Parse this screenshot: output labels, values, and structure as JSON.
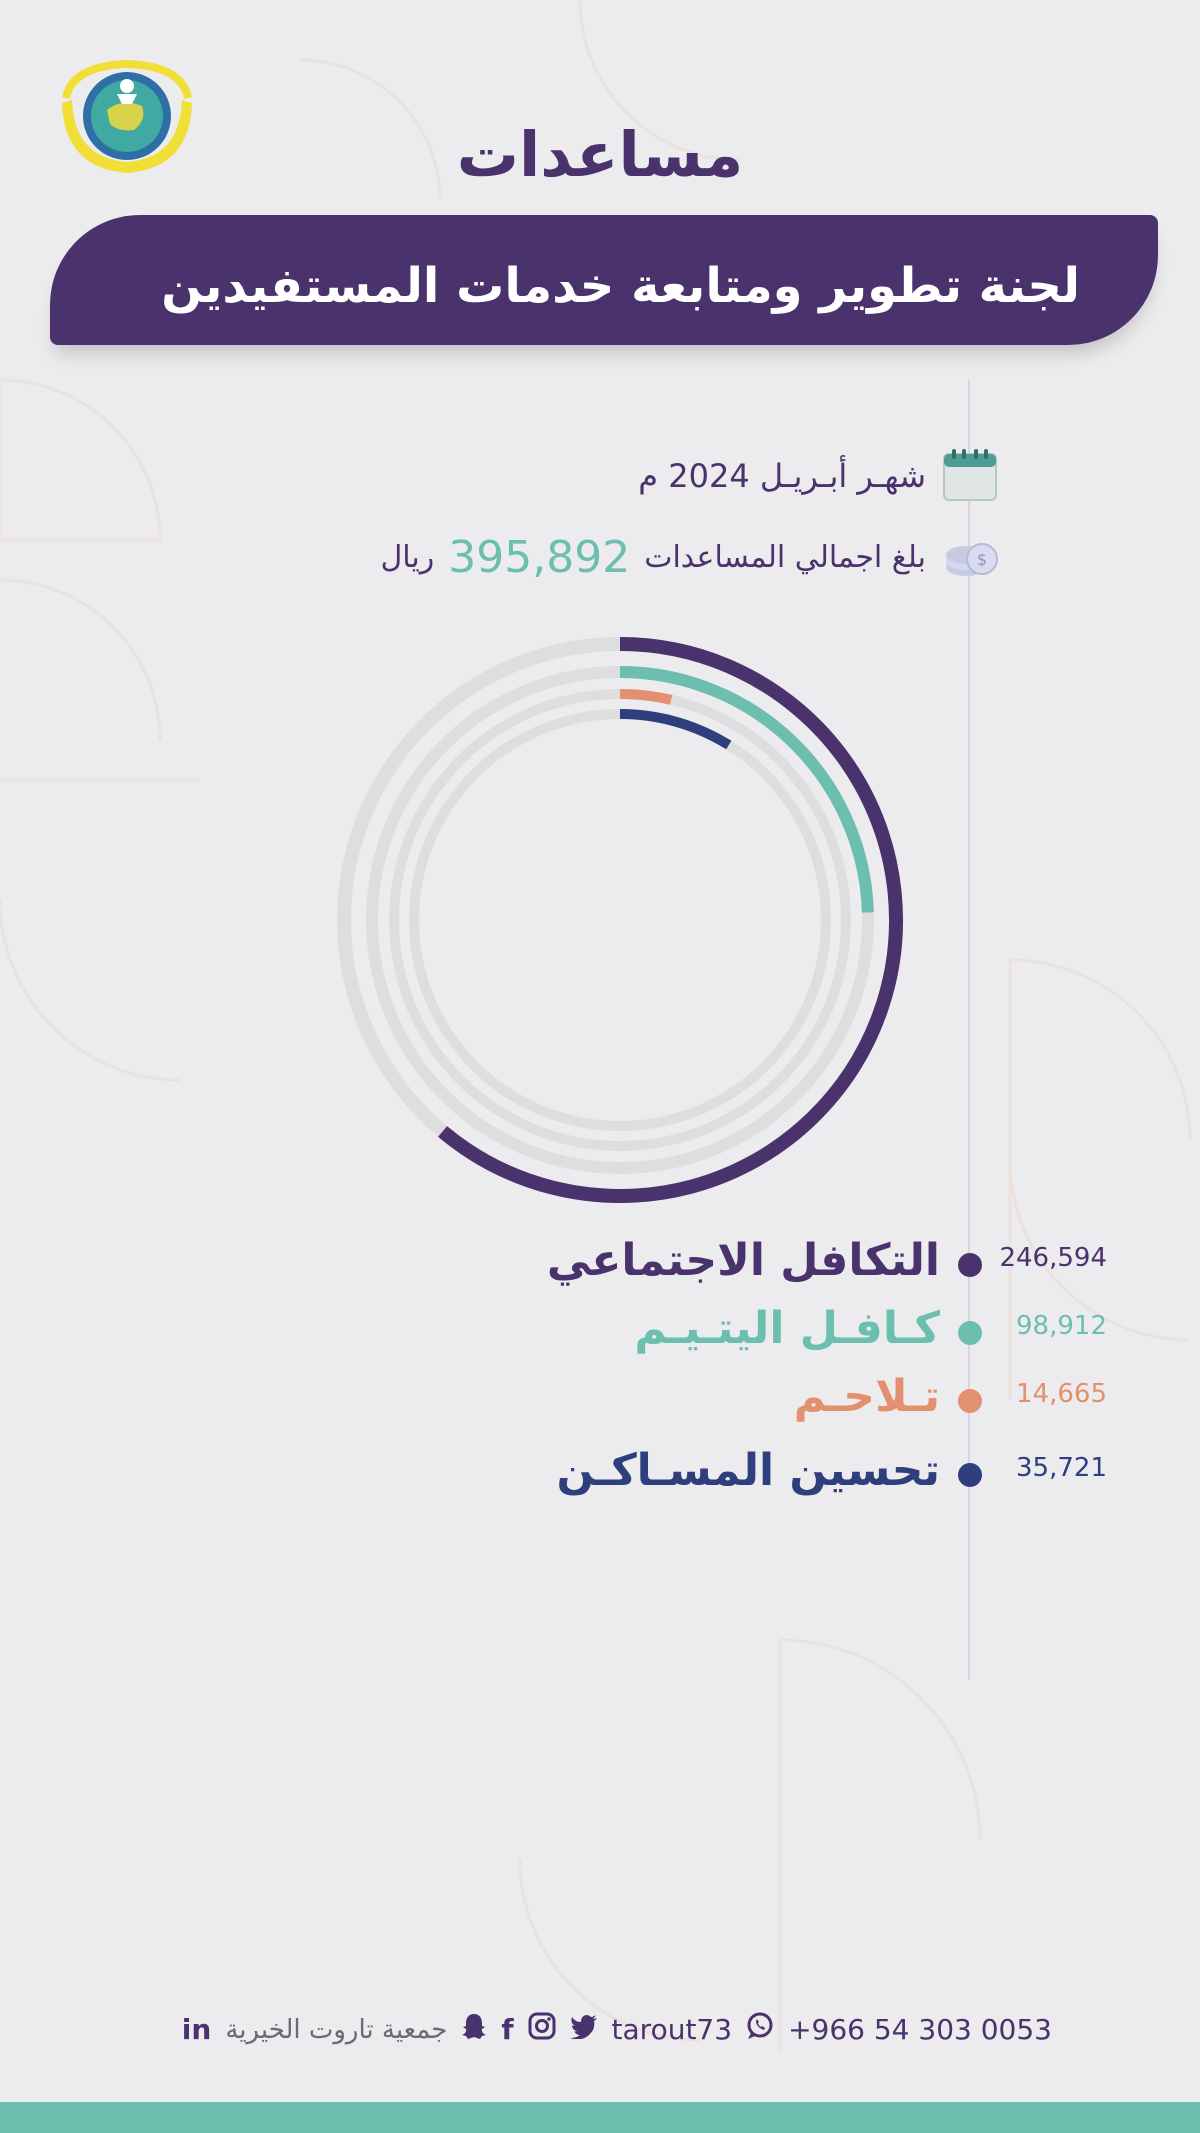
{
  "header": {
    "title": "مساعدات",
    "subtitle": "لجنة تطوير ومتابعة خدمات المستفيدين"
  },
  "info": {
    "month": "شهـر أبـريـل 2024 م",
    "total_label": "بلغ اجمالي المساعدات",
    "total_value": "395,892",
    "total_unit": "ريال",
    "icons": [
      "calendar-icon",
      "coins-icon"
    ]
  },
  "chart_data": {
    "type": "radial-bar",
    "total": 395892,
    "series": [
      {
        "name": "التكافل الاجتماعي",
        "value": 246594,
        "label": "246,594",
        "color": "#4a326c"
      },
      {
        "name": "كـافـل اليتـيـم",
        "value": 98912,
        "label": "98,912",
        "color": "#6cbfae"
      },
      {
        "name": "تـلاحـم",
        "value": 14665,
        "label": "14,665",
        "color": "#e39070"
      },
      {
        "name": "تحسين المسـاكـن",
        "value": 35721,
        "label": "35,721",
        "color": "#2f3f7e"
      }
    ],
    "track_color": "#dedde0"
  },
  "footer": {
    "phone": "+966 54 303 0053",
    "handle": "tarout73",
    "org": "جمعية تاروت الخيرية",
    "icons": [
      "whatsapp-icon",
      "twitter-icon",
      "instagram-icon",
      "facebook-icon",
      "snapchat-icon",
      "linkedin-icon"
    ]
  },
  "colors": {
    "primary": "#4a326c",
    "accent": "#6cbfae",
    "background": "#ecebed"
  }
}
